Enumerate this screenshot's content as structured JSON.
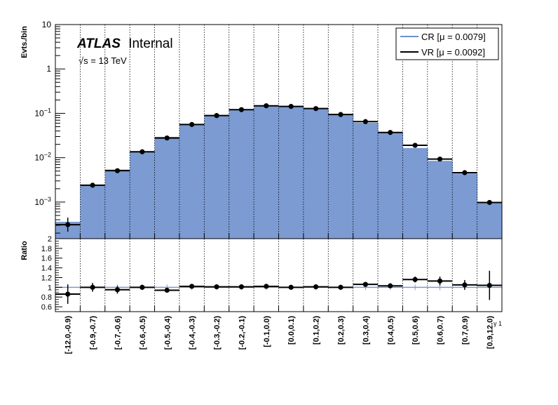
{
  "chart_data": [
    {
      "type": "bar",
      "panel": "main",
      "ylabel": "Evts./bin",
      "yscale": "log",
      "ylim": [
        0.00015,
        10
      ],
      "y_ticks": [
        {
          "v": 0.001,
          "base": "10",
          "exp": "−3"
        },
        {
          "v": 0.01,
          "base": "10",
          "exp": "−2"
        },
        {
          "v": 0.1,
          "base": "10",
          "exp": "−1"
        },
        {
          "v": 1,
          "base": "1",
          "exp": ""
        },
        {
          "v": 10,
          "base": "10",
          "exp": ""
        }
      ],
      "grid_x": true,
      "legend_position": "top-right",
      "categories": [
        "[-12.0,-0.9)",
        "[-0.9,-0.7)",
        "[-0.7,-0.6)",
        "[-0.6,-0.5)",
        "[-0.5,-0.4)",
        "[-0.4,-0.3)",
        "[-0.3,-0.2)",
        "[-0.2,-0.1)",
        "[-0.1,0.0)",
        "[0.0,0.1)",
        "[0.1,0.2)",
        "[0.2,0.3)",
        "[0.3,0.4)",
        "[0.4,0.5)",
        "[0.5,0.6)",
        "[0.6,0.7)",
        "[0.7,0.9)",
        "[0.9,12.0)"
      ],
      "series": [
        {
          "name": "CR [μ = 0.0079]",
          "style": "filled-histogram",
          "color": "#7b9bd2",
          "values": [
            0.00036,
            0.0024,
            0.0054,
            0.0135,
            0.0295,
            0.055,
            0.088,
            0.12,
            0.145,
            0.144,
            0.127,
            0.095,
            0.061,
            0.036,
            0.0165,
            0.0085,
            0.0044,
            0.00095
          ]
        },
        {
          "name": "VR [μ = 0.0092]",
          "style": "points",
          "color": "#000000",
          "values": [
            0.00031,
            0.0024,
            0.0051,
            0.0136,
            0.0278,
            0.056,
            0.089,
            0.121,
            0.148,
            0.143,
            0.128,
            0.094,
            0.065,
            0.037,
            0.019,
            0.0093,
            0.0046,
            0.00098
          ]
        }
      ]
    },
    {
      "type": "scatter",
      "panel": "ratio",
      "ylabel": "Ratio",
      "ylim": [
        0.5,
        2.0
      ],
      "y_ticks": [
        "0.6",
        "0.8",
        "1",
        "1.2",
        "1.4",
        "1.6",
        "1.8",
        "2"
      ],
      "xlabel": "γ 1",
      "values": [
        0.86,
        1.0,
        0.95,
        1.0,
        0.94,
        1.02,
        1.01,
        1.01,
        1.02,
        1.0,
        1.01,
        1.0,
        1.06,
        1.03,
        1.16,
        1.13,
        1.05,
        1.04
      ],
      "errors": [
        0.2,
        0.09,
        0.08,
        0.05,
        0.04,
        0.04,
        0.03,
        0.03,
        0.03,
        0.03,
        0.03,
        0.04,
        0.05,
        0.05,
        0.06,
        0.09,
        0.1,
        0.3
      ],
      "reference_line": 1.0
    }
  ],
  "labels": {
    "atlas": "ATLAS",
    "internal": "Internal",
    "sqrt": "√s",
    "energy": " = 13 TeV"
  },
  "colors": {
    "cr_fill": "#7b9bd2",
    "cr_line": "#6e90c8",
    "vr": "#000000"
  }
}
